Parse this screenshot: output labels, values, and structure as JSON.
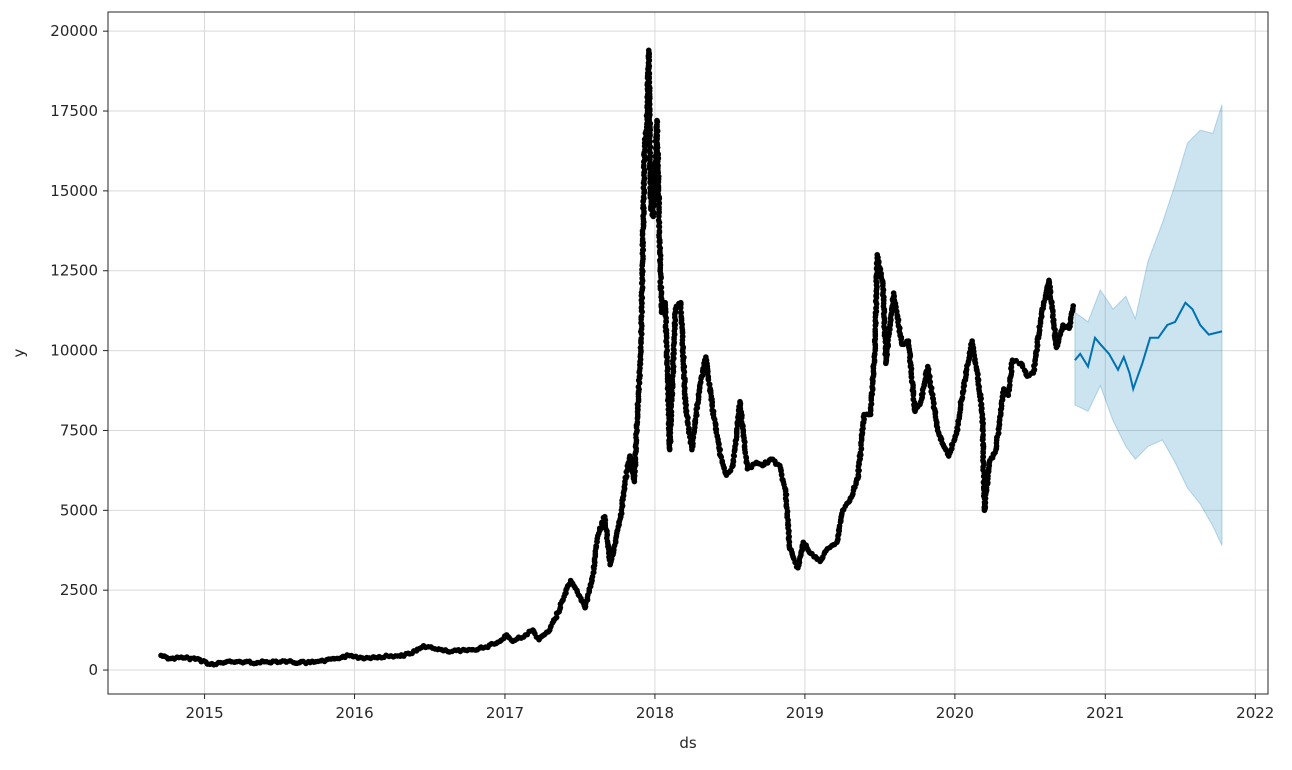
{
  "chart_data": {
    "type": "scatter",
    "title": "",
    "xlabel": "ds",
    "ylabel": "y",
    "x_ticks": [
      "2015",
      "2016",
      "2017",
      "2018",
      "2019",
      "2020",
      "2021",
      "2022"
    ],
    "y_ticks": [
      0,
      2500,
      5000,
      7500,
      10000,
      12500,
      15000,
      17500,
      20000
    ],
    "xlim": [
      "2014-05-11",
      "2022-02-01"
    ],
    "ylim": [
      -750,
      20600
    ],
    "grid": true,
    "colors": {
      "observed": "#000000",
      "forecast_line": "#0072B2",
      "uncertainty_band": "#0072B2"
    },
    "observed": {
      "name": "",
      "points": [
        [
          "2014-09-17",
          457
        ],
        [
          "2014-10-10",
          360
        ],
        [
          "2014-11-15",
          380
        ],
        [
          "2014-12-20",
          330
        ],
        [
          "2015-01-14",
          180
        ],
        [
          "2015-02-20",
          240
        ],
        [
          "2015-03-20",
          260
        ],
        [
          "2015-05-10",
          235
        ],
        [
          "2015-07-10",
          285
        ],
        [
          "2015-08-20",
          230
        ],
        [
          "2015-09-15",
          235
        ],
        [
          "2015-10-20",
          270
        ],
        [
          "2015-11-10",
          360
        ],
        [
          "2015-12-20",
          450
        ],
        [
          "2016-01-20",
          380
        ],
        [
          "2016-03-01",
          420
        ],
        [
          "2016-04-15",
          440
        ],
        [
          "2016-05-20",
          520
        ],
        [
          "2016-06-17",
          760
        ],
        [
          "2016-07-15",
          660
        ],
        [
          "2016-08-15",
          580
        ],
        [
          "2016-10-01",
          610
        ],
        [
          "2016-11-15",
          720
        ],
        [
          "2016-12-20",
          900
        ],
        [
          "2017-01-05",
          1100
        ],
        [
          "2017-01-20",
          900
        ],
        [
          "2017-02-20",
          1100
        ],
        [
          "2017-03-10",
          1250
        ],
        [
          "2017-03-25",
          950
        ],
        [
          "2017-04-20",
          1250
        ],
        [
          "2017-05-10",
          1800
        ],
        [
          "2017-05-25",
          2300
        ],
        [
          "2017-06-10",
          2800
        ],
        [
          "2017-06-25",
          2500
        ],
        [
          "2017-07-15",
          1950
        ],
        [
          "2017-08-01",
          2800
        ],
        [
          "2017-08-15",
          4200
        ],
        [
          "2017-09-01",
          4800
        ],
        [
          "2017-09-14",
          3300
        ],
        [
          "2017-09-25",
          3900
        ],
        [
          "2017-10-10",
          4800
        ],
        [
          "2017-10-20",
          5900
        ],
        [
          "2017-11-01",
          6700
        ],
        [
          "2017-11-12",
          5900
        ],
        [
          "2017-11-20",
          8200
        ],
        [
          "2017-11-28",
          10000
        ],
        [
          "2017-12-07",
          16500
        ],
        [
          "2017-12-12",
          17000
        ],
        [
          "2017-12-17",
          19400
        ],
        [
          "2017-12-22",
          14500
        ],
        [
          "2017-12-28",
          14200
        ],
        [
          "2018-01-06",
          17200
        ],
        [
          "2018-01-12",
          13700
        ],
        [
          "2018-01-17",
          11200
        ],
        [
          "2018-01-26",
          11500
        ],
        [
          "2018-02-01",
          9200
        ],
        [
          "2018-02-06",
          6900
        ],
        [
          "2018-02-20",
          11300
        ],
        [
          "2018-03-05",
          11500
        ],
        [
          "2018-03-17",
          8200
        ],
        [
          "2018-04-01",
          6900
        ],
        [
          "2018-04-20",
          8900
        ],
        [
          "2018-05-05",
          9800
        ],
        [
          "2018-05-20",
          8300
        ],
        [
          "2018-06-10",
          6700
        ],
        [
          "2018-06-24",
          6100
        ],
        [
          "2018-07-10",
          6400
        ],
        [
          "2018-07-27",
          8400
        ],
        [
          "2018-08-14",
          6300
        ],
        [
          "2018-09-05",
          6500
        ],
        [
          "2018-09-20",
          6400
        ],
        [
          "2018-10-10",
          6600
        ],
        [
          "2018-11-01",
          6400
        ],
        [
          "2018-11-15",
          5600
        ],
        [
          "2018-11-25",
          3800
        ],
        [
          "2018-12-15",
          3200
        ],
        [
          "2018-12-28",
          4000
        ],
        [
          "2019-01-15",
          3650
        ],
        [
          "2019-02-07",
          3400
        ],
        [
          "2019-02-25",
          3800
        ],
        [
          "2019-03-20",
          4000
        ],
        [
          "2019-04-03",
          5000
        ],
        [
          "2019-04-20",
          5300
        ],
        [
          "2019-05-10",
          6000
        ],
        [
          "2019-05-25",
          8000
        ],
        [
          "2019-06-10",
          8000
        ],
        [
          "2019-06-21",
          10200
        ],
        [
          "2019-06-26",
          13000
        ],
        [
          "2019-07-10",
          12100
        ],
        [
          "2019-07-17",
          9600
        ],
        [
          "2019-08-05",
          11800
        ],
        [
          "2019-08-25",
          10200
        ],
        [
          "2019-09-10",
          10300
        ],
        [
          "2019-09-26",
          8100
        ],
        [
          "2019-10-10",
          8400
        ],
        [
          "2019-10-27",
          9500
        ],
        [
          "2019-11-20",
          7500
        ],
        [
          "2019-12-17",
          6700
        ],
        [
          "2020-01-05",
          7400
        ],
        [
          "2020-01-20",
          8700
        ],
        [
          "2020-02-12",
          10300
        ],
        [
          "2020-02-25",
          9300
        ],
        [
          "2020-03-08",
          8000
        ],
        [
          "2020-03-13",
          5000
        ],
        [
          "2020-03-25",
          6500
        ],
        [
          "2020-04-10",
          6900
        ],
        [
          "2020-04-29",
          8800
        ],
        [
          "2020-05-10",
          8600
        ],
        [
          "2020-05-20",
          9700
        ],
        [
          "2020-06-10",
          9600
        ],
        [
          "2020-06-25",
          9200
        ],
        [
          "2020-07-10",
          9300
        ],
        [
          "2020-07-28",
          11000
        ],
        [
          "2020-08-10",
          11800
        ],
        [
          "2020-08-17",
          12200
        ],
        [
          "2020-09-04",
          10100
        ],
        [
          "2020-09-20",
          10800
        ],
        [
          "2020-10-05",
          10700
        ],
        [
          "2020-10-15",
          11400
        ]
      ]
    },
    "forecast": {
      "name": "",
      "points": [
        [
          "2020-10-19",
          9700
        ],
        [
          "2020-11-01",
          9900
        ],
        [
          "2020-11-20",
          9500
        ],
        [
          "2020-12-07",
          10400
        ],
        [
          "2020-12-20",
          10200
        ],
        [
          "2021-01-10",
          9900
        ],
        [
          "2021-02-01",
          9400
        ],
        [
          "2021-02-15",
          9800
        ],
        [
          "2021-03-01",
          9300
        ],
        [
          "2021-03-10",
          8800
        ],
        [
          "2021-04-01",
          9600
        ],
        [
          "2021-04-20",
          10400
        ],
        [
          "2021-05-10",
          10400
        ],
        [
          "2021-06-01",
          10800
        ],
        [
          "2021-06-20",
          10900
        ],
        [
          "2021-07-15",
          11500
        ],
        [
          "2021-08-01",
          11300
        ],
        [
          "2021-08-20",
          10800
        ],
        [
          "2021-09-10",
          10500
        ],
        [
          "2021-10-12",
          10600
        ]
      ]
    },
    "uncertainty_upper": [
      [
        "2020-10-19",
        11200
      ],
      [
        "2020-11-20",
        10900
      ],
      [
        "2020-12-20",
        11900
      ],
      [
        "2021-01-20",
        11300
      ],
      [
        "2021-02-20",
        11700
      ],
      [
        "2021-03-15",
        11000
      ],
      [
        "2021-04-15",
        12800
      ],
      [
        "2021-05-20",
        14000
      ],
      [
        "2021-06-20",
        15200
      ],
      [
        "2021-07-20",
        16500
      ],
      [
        "2021-08-20",
        16900
      ],
      [
        "2021-09-20",
        16800
      ],
      [
        "2021-10-12",
        17700
      ]
    ],
    "uncertainty_lower": [
      [
        "2020-10-19",
        8300
      ],
      [
        "2020-11-20",
        8100
      ],
      [
        "2020-12-20",
        8900
      ],
      [
        "2021-01-20",
        7800
      ],
      [
        "2021-02-20",
        7000
      ],
      [
        "2021-03-15",
        6600
      ],
      [
        "2021-04-15",
        7000
      ],
      [
        "2021-05-20",
        7200
      ],
      [
        "2021-06-20",
        6500
      ],
      [
        "2021-07-20",
        5700
      ],
      [
        "2021-08-20",
        5200
      ],
      [
        "2021-09-20",
        4500
      ],
      [
        "2021-10-12",
        3900
      ]
    ]
  }
}
